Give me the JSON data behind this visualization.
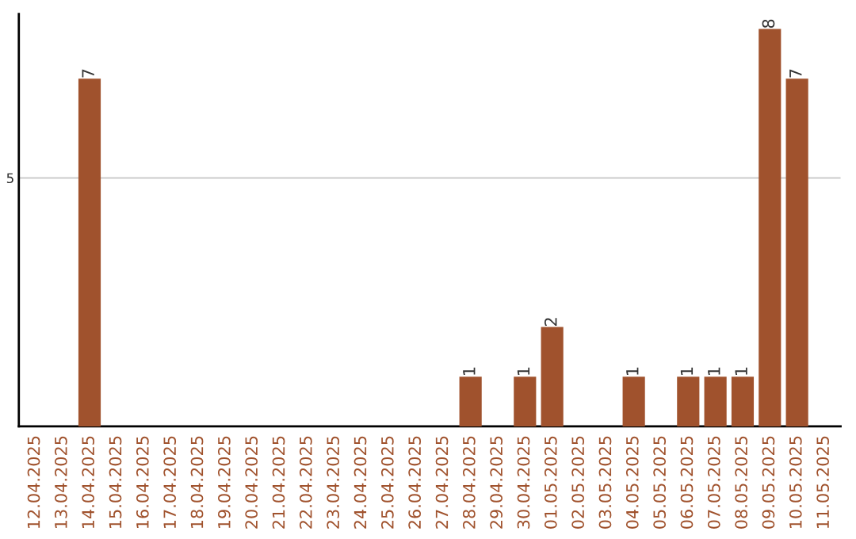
{
  "chart_data": {
    "type": "bar",
    "categories": [
      "12.04.2025",
      "13.04.2025",
      "14.04.2025",
      "15.04.2025",
      "16.04.2025",
      "17.04.2025",
      "18.04.2025",
      "19.04.2025",
      "20.04.2025",
      "21.04.2025",
      "22.04.2025",
      "23.04.2025",
      "24.04.2025",
      "25.04.2025",
      "26.04.2025",
      "27.04.2025",
      "28.04.2025",
      "29.04.2025",
      "30.04.2025",
      "01.05.2025",
      "02.05.2025",
      "03.05.2025",
      "04.05.2025",
      "05.05.2025",
      "06.05.2025",
      "07.05.2025",
      "08.05.2025",
      "09.05.2025",
      "10.05.2025",
      "11.05.2025"
    ],
    "values": [
      0,
      0,
      7,
      0,
      0,
      0,
      0,
      0,
      0,
      0,
      0,
      0,
      0,
      0,
      0,
      0,
      1,
      0,
      1,
      2,
      0,
      0,
      1,
      0,
      1,
      1,
      1,
      8,
      7,
      0
    ],
    "value_labels": [
      null,
      null,
      "7",
      null,
      null,
      null,
      null,
      null,
      null,
      null,
      null,
      null,
      null,
      null,
      null,
      null,
      "1",
      null,
      "1",
      "2",
      null,
      null,
      "1",
      null,
      "1",
      "1",
      "1",
      "8",
      "7",
      null
    ],
    "color": "#a0522d",
    "ylim": [
      0,
      8.3
    ],
    "yticks": [
      5
    ],
    "grid": "y"
  }
}
